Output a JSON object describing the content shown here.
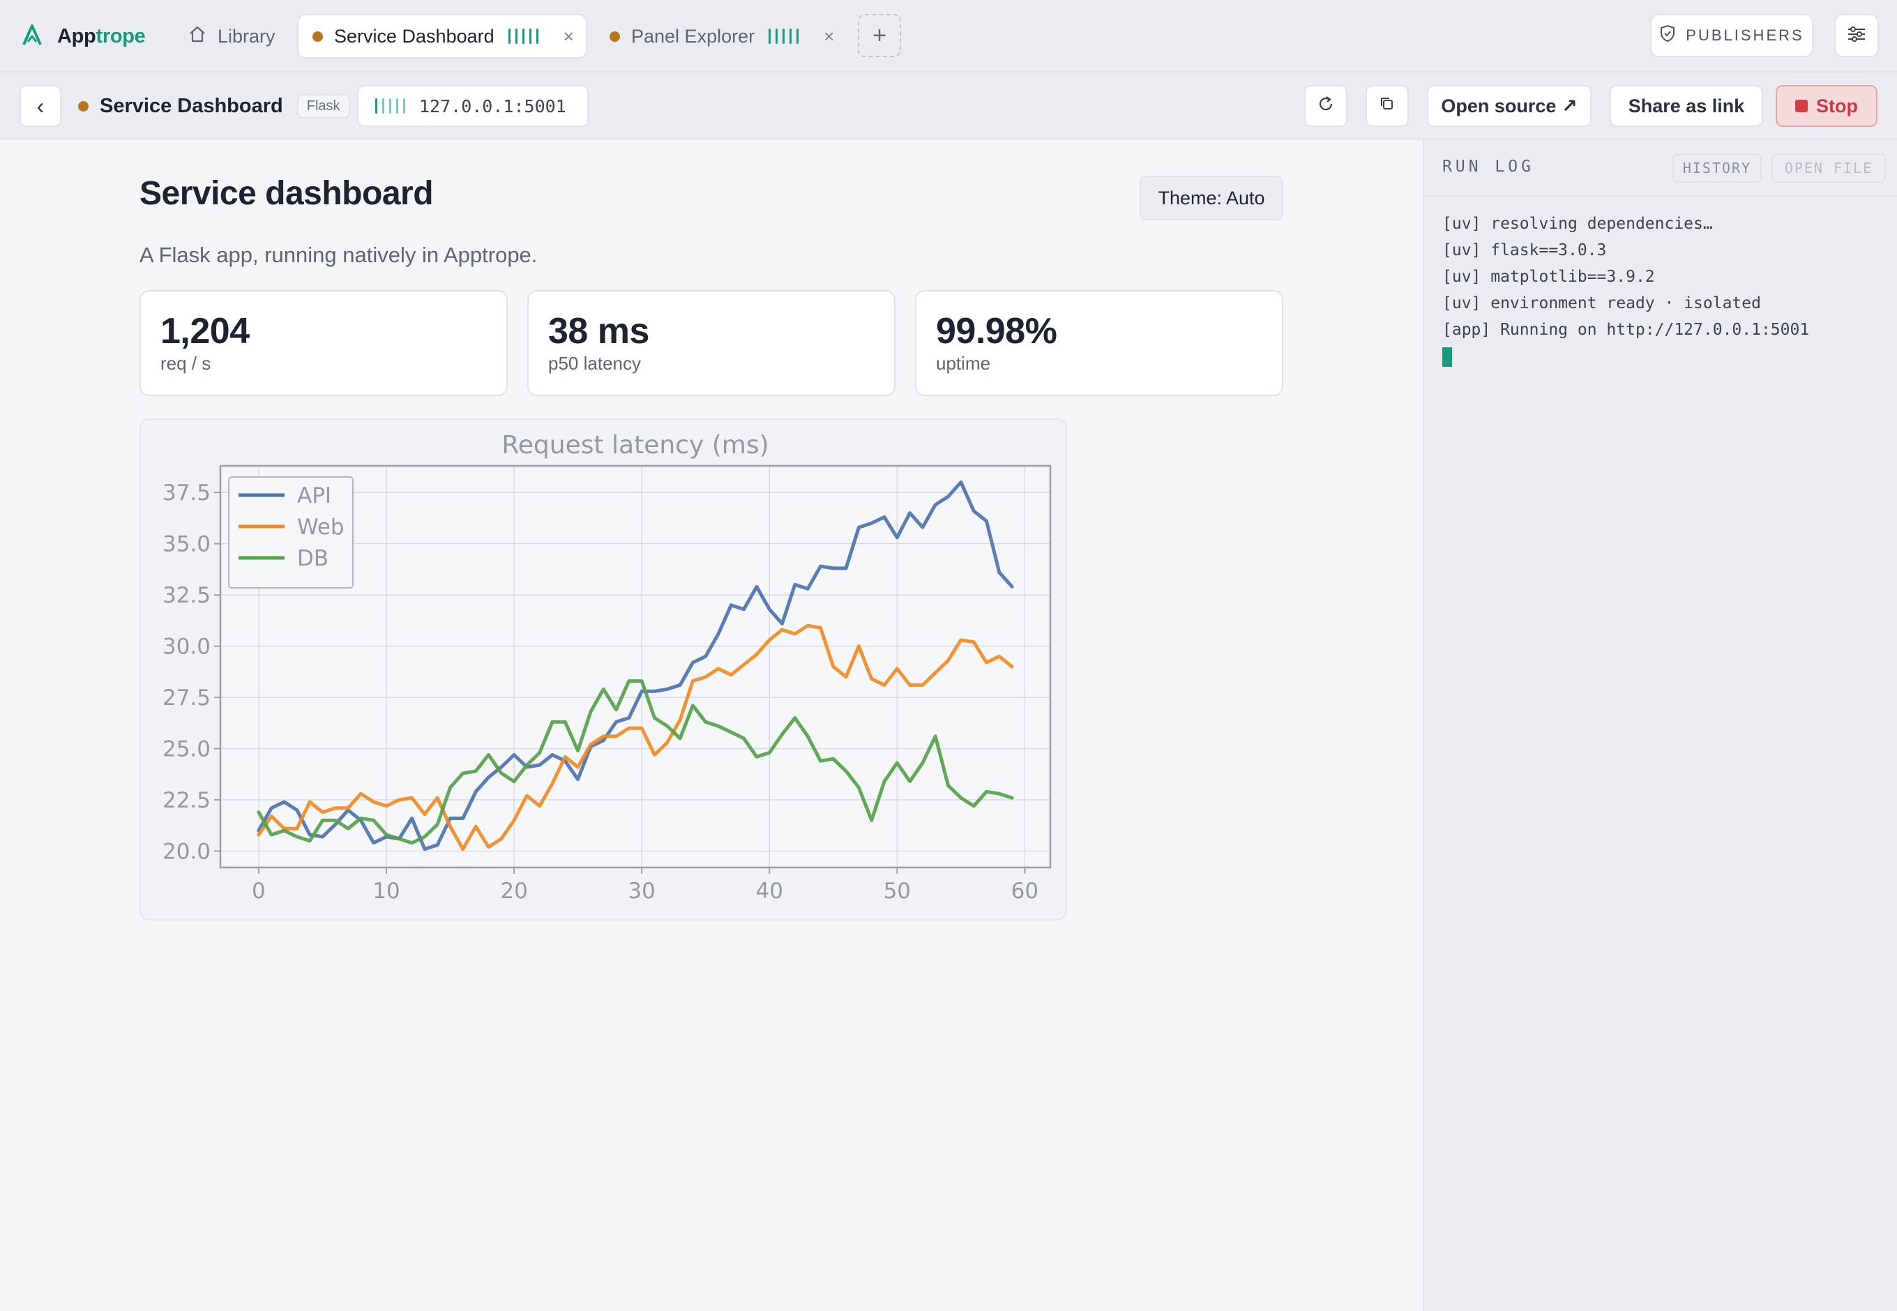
{
  "brand": {
    "name_prefix": "App",
    "name_suffix": "trope"
  },
  "tabs": [
    {
      "label": "Library",
      "icon": "home-icon"
    },
    {
      "label": "Service Dashboard",
      "status_color": "#b8751f",
      "active": true
    },
    {
      "label": "Panel Explorer",
      "status_color": "#b8751f",
      "active": false
    }
  ],
  "topbar": {
    "publishers_label": "PUBLISHERS",
    "add_tab_label": "+"
  },
  "toolbar": {
    "back_label": "‹",
    "title": "Service Dashboard",
    "framework_badge": "Flask",
    "url": "127.0.0.1:5001",
    "open_source_label": "Open source ↗",
    "share_label": "Share as link",
    "stop_label": "Stop"
  },
  "main": {
    "title": "Service dashboard",
    "subtitle": "A Flask app, running natively in Apptrope.",
    "theme_label": "Theme: Auto",
    "stats": [
      {
        "value": "1,204",
        "label": "req / s"
      },
      {
        "value": "38 ms",
        "label": "p50 latency"
      },
      {
        "value": "99.98%",
        "label": "uptime"
      }
    ]
  },
  "chart_data": {
    "type": "line",
    "title": "Request latency (ms)",
    "xlabel": "",
    "ylabel": "",
    "xlim": [
      -3,
      62
    ],
    "ylim": [
      19.2,
      38.8
    ],
    "xticks": [
      0,
      10,
      20,
      30,
      40,
      50,
      60
    ],
    "yticks": [
      20.0,
      22.5,
      25.0,
      27.5,
      30.0,
      32.5,
      35.0,
      37.5
    ],
    "grid": true,
    "legend": "top-left",
    "x": [
      0,
      1,
      2,
      3,
      4,
      5,
      6,
      7,
      8,
      9,
      10,
      11,
      12,
      13,
      14,
      15,
      16,
      17,
      18,
      19,
      20,
      21,
      22,
      23,
      24,
      25,
      26,
      27,
      28,
      29,
      30,
      31,
      32,
      33,
      34,
      35,
      36,
      37,
      38,
      39,
      40,
      41,
      42,
      43,
      44,
      45,
      46,
      47,
      48,
      49,
      50,
      51,
      52,
      53,
      54,
      55,
      56,
      57,
      58,
      59
    ],
    "series": [
      {
        "name": "API",
        "color": "#4c72b0",
        "values": [
          21.0,
          22.1,
          22.4,
          22.0,
          20.8,
          20.7,
          21.3,
          22.0,
          21.5,
          20.4,
          20.7,
          20.6,
          21.6,
          20.1,
          20.3,
          21.6,
          21.6,
          22.9,
          23.6,
          24.1,
          24.7,
          24.1,
          24.2,
          24.7,
          24.4,
          23.5,
          25.1,
          25.4,
          26.3,
          26.5,
          27.8,
          27.8,
          27.9,
          28.1,
          29.2,
          29.5,
          30.6,
          32.0,
          31.8,
          32.9,
          31.8,
          31.1,
          33.0,
          32.8,
          33.9,
          33.8,
          33.8,
          35.8,
          36.0,
          36.3,
          35.3,
          36.5,
          35.8,
          36.9,
          37.3,
          38.0,
          36.6,
          36.1,
          33.6,
          32.9
        ]
      },
      {
        "name": "Web",
        "color": "#f08a24",
        "values": [
          20.8,
          21.7,
          21.1,
          21.1,
          22.4,
          21.9,
          22.1,
          22.1,
          22.8,
          22.4,
          22.2,
          22.5,
          22.6,
          21.8,
          22.6,
          21.2,
          20.1,
          21.2,
          20.2,
          20.6,
          21.5,
          22.7,
          22.2,
          23.3,
          24.6,
          24.1,
          25.2,
          25.6,
          25.6,
          26.0,
          26.0,
          24.7,
          25.3,
          26.4,
          28.3,
          28.5,
          28.9,
          28.6,
          29.1,
          29.6,
          30.3,
          30.8,
          30.6,
          31.0,
          30.9,
          29.0,
          28.5,
          30.0,
          28.4,
          28.1,
          28.9,
          28.1,
          28.1,
          28.7,
          29.3,
          30.3,
          30.2,
          29.2,
          29.5,
          29.0
        ]
      },
      {
        "name": "DB",
        "color": "#55a14a",
        "values": [
          21.9,
          20.8,
          21.0,
          20.7,
          20.5,
          21.5,
          21.5,
          21.1,
          21.6,
          21.5,
          20.8,
          20.6,
          20.4,
          20.7,
          21.3,
          23.1,
          23.8,
          23.9,
          24.7,
          23.8,
          23.4,
          24.2,
          24.8,
          26.3,
          26.3,
          24.9,
          26.8,
          27.9,
          26.9,
          28.3,
          28.3,
          26.5,
          26.1,
          25.5,
          27.1,
          26.3,
          26.1,
          25.8,
          25.5,
          24.6,
          24.8,
          25.7,
          26.5,
          25.6,
          24.4,
          24.5,
          23.9,
          23.1,
          21.5,
          23.4,
          24.3,
          23.4,
          24.3,
          25.6,
          23.2,
          22.6,
          22.2,
          22.9,
          22.8,
          22.6
        ]
      }
    ]
  },
  "runlog": {
    "title": "RUN LOG",
    "history_label": "HISTORY",
    "open_file_label": "OPEN FILE",
    "lines": [
      "[uv] resolving dependencies…",
      "[uv] flask==3.0.3",
      "[uv] matplotlib==3.9.2",
      "[uv] environment ready · isolated",
      "[app] Running on http://127.0.0.1:5001"
    ]
  },
  "colors": {
    "accent": "#169c7c",
    "status_dot": "#b8751f",
    "stop": "#d43a44"
  }
}
